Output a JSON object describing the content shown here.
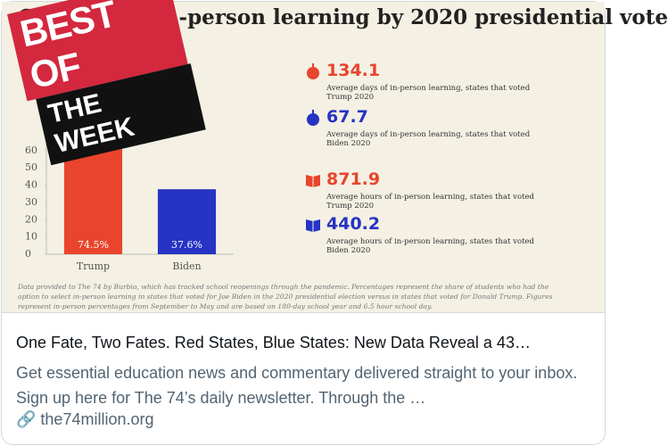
{
  "chart_data": {
    "type": "bar",
    "title": "Cumulative in-person learning by 2020 presidential vote",
    "categories": [
      "Trump",
      "Biden"
    ],
    "values": [
      74.5,
      37.6
    ],
    "value_labels": [
      "74.5%",
      "37.6%"
    ],
    "colors": [
      "#e8452c",
      "#2633c4"
    ],
    "ylim": [
      0,
      80
    ],
    "yticks": [
      0,
      10,
      20,
      30,
      40,
      50,
      60
    ]
  },
  "stats": [
    {
      "value": "134.1",
      "text": "Average days of in-person learning, states that voted Trump 2020"
    },
    {
      "value": "67.7",
      "text": "Average days of in-person learning, states that voted Biden 2020"
    },
    {
      "value": "871.9",
      "text": "Average hours of in-person learning, states that voted Trump 2020"
    },
    {
      "value": "440.2",
      "text": "Average hours of in-person learning, states that voted Biden 2020"
    }
  ],
  "footnote": "Data provided to The 74 by Burbio, which has tracked school reopenings through the pandemic. Percentages represent the share of students who had the option to select in-person learning in states that voted for Joe Biden in the 2020 presidential election versus in states that voted for Donald Trump. Figures represent in-person percentages from September to May and are based on 180-day school year and 6.5 hour school day.",
  "sticker": {
    "line1": "BEST OF",
    "line2": "THE WEEK"
  },
  "card": {
    "title": "One Fate, Two Fates. Red States, Blue States: New Data Reveal a 43…",
    "description": "Get essential education news and commentary delivered straight to your inbox. Sign up here for The 74’s daily newsletter. Through the …",
    "domain": "the74million.org"
  }
}
